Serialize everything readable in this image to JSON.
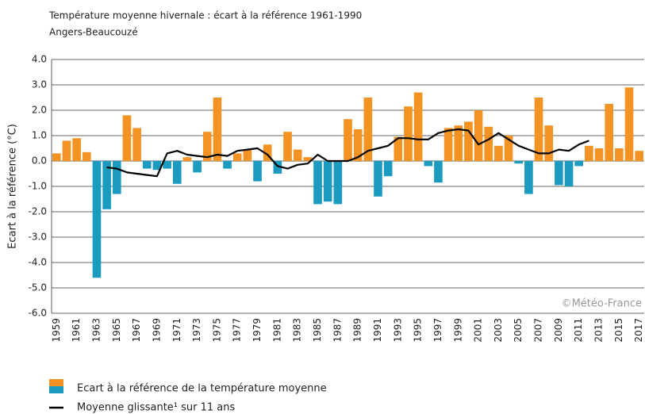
{
  "chart_data": {
    "type": "bar",
    "title": "Température moyenne hivernale : écart à la référence 1961-1990",
    "subtitle": "Angers-Beaucouzé",
    "y_label": "Ecart à la référence (°C)",
    "annotation": "©Météo-France",
    "categories": [
      "1959",
      null,
      "1961",
      null,
      "1963",
      null,
      "1965",
      null,
      "1967",
      null,
      "1969",
      null,
      "1971",
      null,
      "1973",
      null,
      "1975",
      null,
      "1977",
      null,
      "1979",
      null,
      "1981",
      null,
      "1983",
      null,
      "1985",
      null,
      "1987",
      null,
      "1989",
      null,
      "1991",
      null,
      "1993",
      null,
      "1995",
      null,
      "1997",
      null,
      "1999",
      null,
      "2001",
      null,
      "2003",
      null,
      "2005",
      null,
      "2007",
      null,
      "2009",
      null,
      "2011",
      null,
      "2013",
      null,
      "2015",
      null,
      "2017"
    ],
    "series": [
      {
        "name": "Ecart à la référence de la température moyenne",
        "type": "bar",
        "positive_color": "#f39323",
        "negative_color": "#1a9bbf",
        "values": [
          0.3,
          0.8,
          0.9,
          0.35,
          -4.6,
          -1.9,
          -1.3,
          1.8,
          1.3,
          -0.3,
          -0.35,
          -0.3,
          -0.9,
          0.15,
          -0.45,
          1.15,
          2.5,
          -0.3,
          0.3,
          0.45,
          -0.8,
          0.65,
          -0.5,
          1.15,
          0.45,
          0.15,
          -1.7,
          -1.6,
          -1.7,
          1.65,
          1.25,
          2.5,
          -1.4,
          -0.6,
          0.95,
          2.15,
          2.7,
          -0.2,
          -0.85,
          1.3,
          1.4,
          1.55,
          2.0,
          1.35,
          0.6,
          1.0,
          -0.1,
          -1.3,
          2.5,
          1.4,
          -0.95,
          -1.0,
          -0.2,
          0.6,
          0.5,
          2.25,
          0.5,
          2.9,
          0.4
        ]
      },
      {
        "name": "Moyenne glissante¹ sur 11 ans",
        "type": "line",
        "color": "#000000",
        "values": [
          null,
          null,
          null,
          null,
          null,
          -0.25,
          -0.3,
          -0.45,
          -0.5,
          -0.55,
          -0.6,
          0.3,
          0.4,
          0.25,
          0.2,
          0.15,
          0.25,
          0.2,
          0.4,
          0.45,
          0.5,
          0.25,
          -0.2,
          -0.3,
          -0.15,
          -0.1,
          0.25,
          0.0,
          0.0,
          0.0,
          0.15,
          0.4,
          0.5,
          0.6,
          0.9,
          0.9,
          0.85,
          0.85,
          1.1,
          1.2,
          1.25,
          1.2,
          0.65,
          0.85,
          1.1,
          0.85,
          0.6,
          0.45,
          0.3,
          0.3,
          0.45,
          0.4,
          0.65,
          0.8,
          null,
          null,
          null,
          null,
          null
        ]
      }
    ],
    "ylim": [
      -6,
      4
    ],
    "yticks": [
      {
        "value": -6,
        "label": "-6.0"
      },
      {
        "value": -5,
        "label": "-5.0"
      },
      {
        "value": -4,
        "label": "-4.0"
      },
      {
        "value": -3,
        "label": "-3.0"
      },
      {
        "value": -2,
        "label": "-2.0"
      },
      {
        "value": -1,
        "label": "-1.0"
      },
      {
        "value": 0,
        "label": "0.0"
      },
      {
        "value": 1,
        "label": "1.0"
      },
      {
        "value": 2,
        "label": "2.0"
      },
      {
        "value": 3,
        "label": "3.0"
      },
      {
        "value": 4,
        "label": "4.0"
      }
    ],
    "grid": true
  }
}
